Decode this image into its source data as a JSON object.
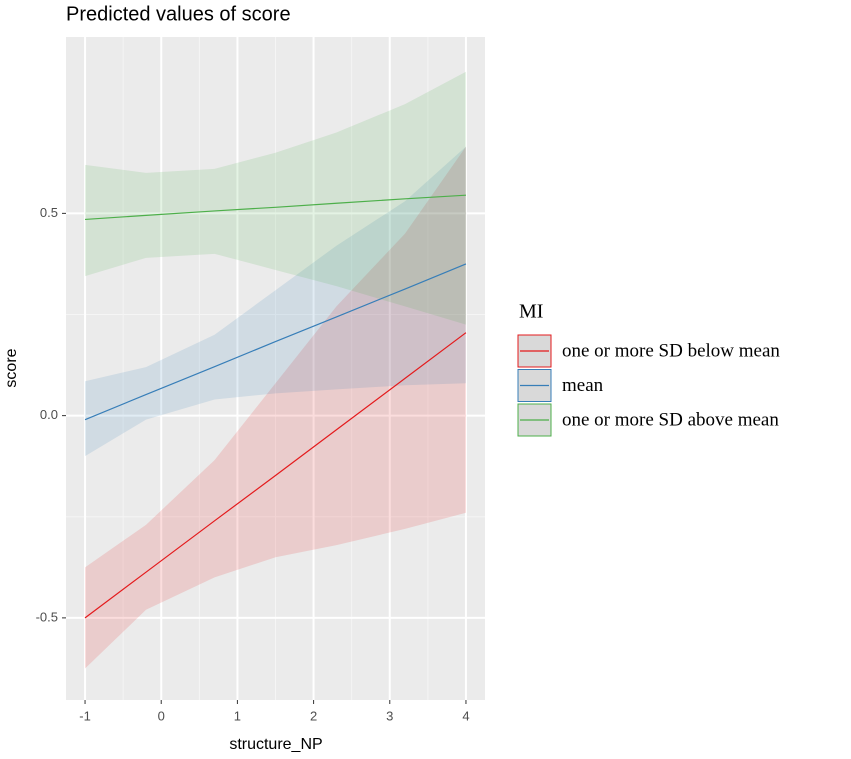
{
  "chart_data": {
    "type": "line",
    "title": "Predicted values of score",
    "x_label": "structure_NP",
    "y_label": "score",
    "legend_title": "MI",
    "legend_position": "right",
    "grid": true,
    "x": [
      -1,
      -0.2,
      0.7,
      1.5,
      2.3,
      3.2,
      4
    ],
    "xlim": [
      -1.25,
      4.25
    ],
    "xticks": [
      -1,
      0,
      1,
      2,
      3,
      4
    ],
    "ylim": [
      -0.703,
      0.936
    ],
    "yticks": [
      -0.5,
      {
        "value": 0,
        "label": "0.0"
      },
      0.5
    ],
    "series": [
      {
        "name": "one or more SD below mean",
        "color": "#e41a1c",
        "values": [
          -0.5,
          -0.387,
          -0.26,
          -0.148,
          -0.035,
          0.092,
          0.205
        ],
        "lower": [
          -0.625,
          -0.48,
          -0.4,
          -0.35,
          -0.32,
          -0.28,
          -0.24
        ],
        "upper": [
          -0.375,
          -0.27,
          -0.11,
          0.08,
          0.27,
          0.45,
          0.665
        ]
      },
      {
        "name": "mean",
        "color": "#377eb8",
        "values": [
          -0.01,
          0.052,
          0.121,
          0.183,
          0.244,
          0.313,
          0.375
        ],
        "lower": [
          -0.1,
          -0.01,
          0.04,
          0.055,
          0.065,
          0.075,
          0.08
        ],
        "upper": [
          0.085,
          0.12,
          0.2,
          0.31,
          0.42,
          0.53,
          0.665
        ]
      },
      {
        "name": "one or more SD above mean",
        "color": "#4daf4a",
        "values": [
          0.485,
          0.495,
          0.506,
          0.515,
          0.525,
          0.536,
          0.545
        ],
        "lower": [
          0.345,
          0.39,
          0.4,
          0.36,
          0.32,
          0.27,
          0.225
        ],
        "upper": [
          0.62,
          0.6,
          0.61,
          0.65,
          0.7,
          0.77,
          0.85
        ]
      }
    ]
  }
}
